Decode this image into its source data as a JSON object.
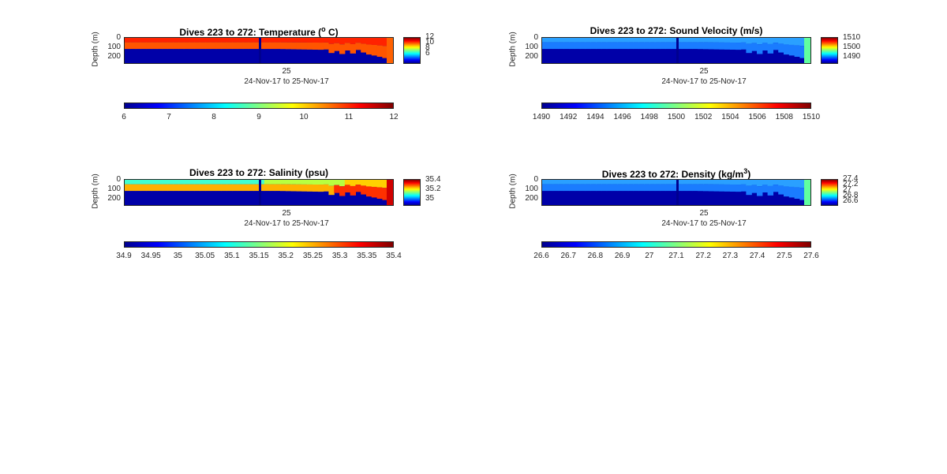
{
  "chart_data": [
    {
      "type": "heatmap",
      "title": "Dives 223 to 272: Temperature (",
      "title_sup": "o",
      "title_tail": " C)",
      "ylabel": "Depth (m)",
      "xlabel": "24-Nov-17 to 25-Nov-17",
      "x_ticks": [
        "25"
      ],
      "y_ticks": [
        "0",
        "100",
        "200"
      ],
      "side_ticks": [
        "12",
        "10",
        "8",
        "6"
      ],
      "colorbar_ticks": [
        "6",
        "7",
        "8",
        "9",
        "10",
        "11",
        "12"
      ],
      "clim": [
        6,
        12
      ],
      "mixed_layer": "red",
      "deep": "blue"
    },
    {
      "type": "heatmap",
      "title": "Dives 223 to 272: Sound Velocity (m/s)",
      "ylabel": "Depth (m)",
      "xlabel": "24-Nov-17 to 25-Nov-17",
      "x_ticks": [
        "25"
      ],
      "y_ticks": [
        "0",
        "100",
        "200"
      ],
      "side_ticks": [
        "1510",
        "1500",
        "1490"
      ],
      "colorbar_ticks": [
        "1490",
        "1492",
        "1494",
        "1496",
        "1498",
        "1500",
        "1502",
        "1504",
        "1506",
        "1508",
        "1510"
      ],
      "clim": [
        1490,
        1510
      ],
      "mixed_layer": "light-blue",
      "deep": "blue"
    },
    {
      "type": "heatmap",
      "title": "Dives 223 to 272: Salinity (psu)",
      "ylabel": "Depth (m)",
      "xlabel": "24-Nov-17 to 25-Nov-17",
      "x_ticks": [
        "25"
      ],
      "y_ticks": [
        "0",
        "100",
        "200"
      ],
      "side_ticks": [
        "35.4",
        "35.2",
        "35"
      ],
      "colorbar_ticks": [
        "34.9",
        "34.95",
        "35",
        "35.05",
        "35.1",
        "35.15",
        "35.2",
        "35.25",
        "35.3",
        "35.35",
        "35.4"
      ],
      "clim": [
        34.9,
        35.4
      ],
      "mixed_layer": "cyan-yellow-red",
      "deep": "blue"
    },
    {
      "type": "heatmap",
      "title": "Dives 223 to 272: Density (kg/m",
      "title_sup": "3",
      "title_tail": ")",
      "ylabel": "Depth (m)",
      "xlabel": "24-Nov-17 to 25-Nov-17",
      "x_ticks": [
        "25"
      ],
      "y_ticks": [
        "0",
        "100",
        "200"
      ],
      "side_ticks": [
        "27.4",
        "27.2",
        "27",
        "26.8",
        "26.6"
      ],
      "colorbar_ticks": [
        "26.6",
        "26.7",
        "26.8",
        "26.9",
        "27",
        "27.1",
        "27.2",
        "27.3",
        "27.4",
        "27.5",
        "27.6"
      ],
      "clim": [
        26.6,
        27.6
      ],
      "mixed_layer": "light-blue",
      "deep": "blue"
    }
  ],
  "colors": {
    "jet": [
      "#00008f",
      "#0000ff",
      "#0080ff",
      "#00ffff",
      "#80ff80",
      "#ffff00",
      "#ff8000",
      "#ff0000",
      "#800000"
    ]
  }
}
